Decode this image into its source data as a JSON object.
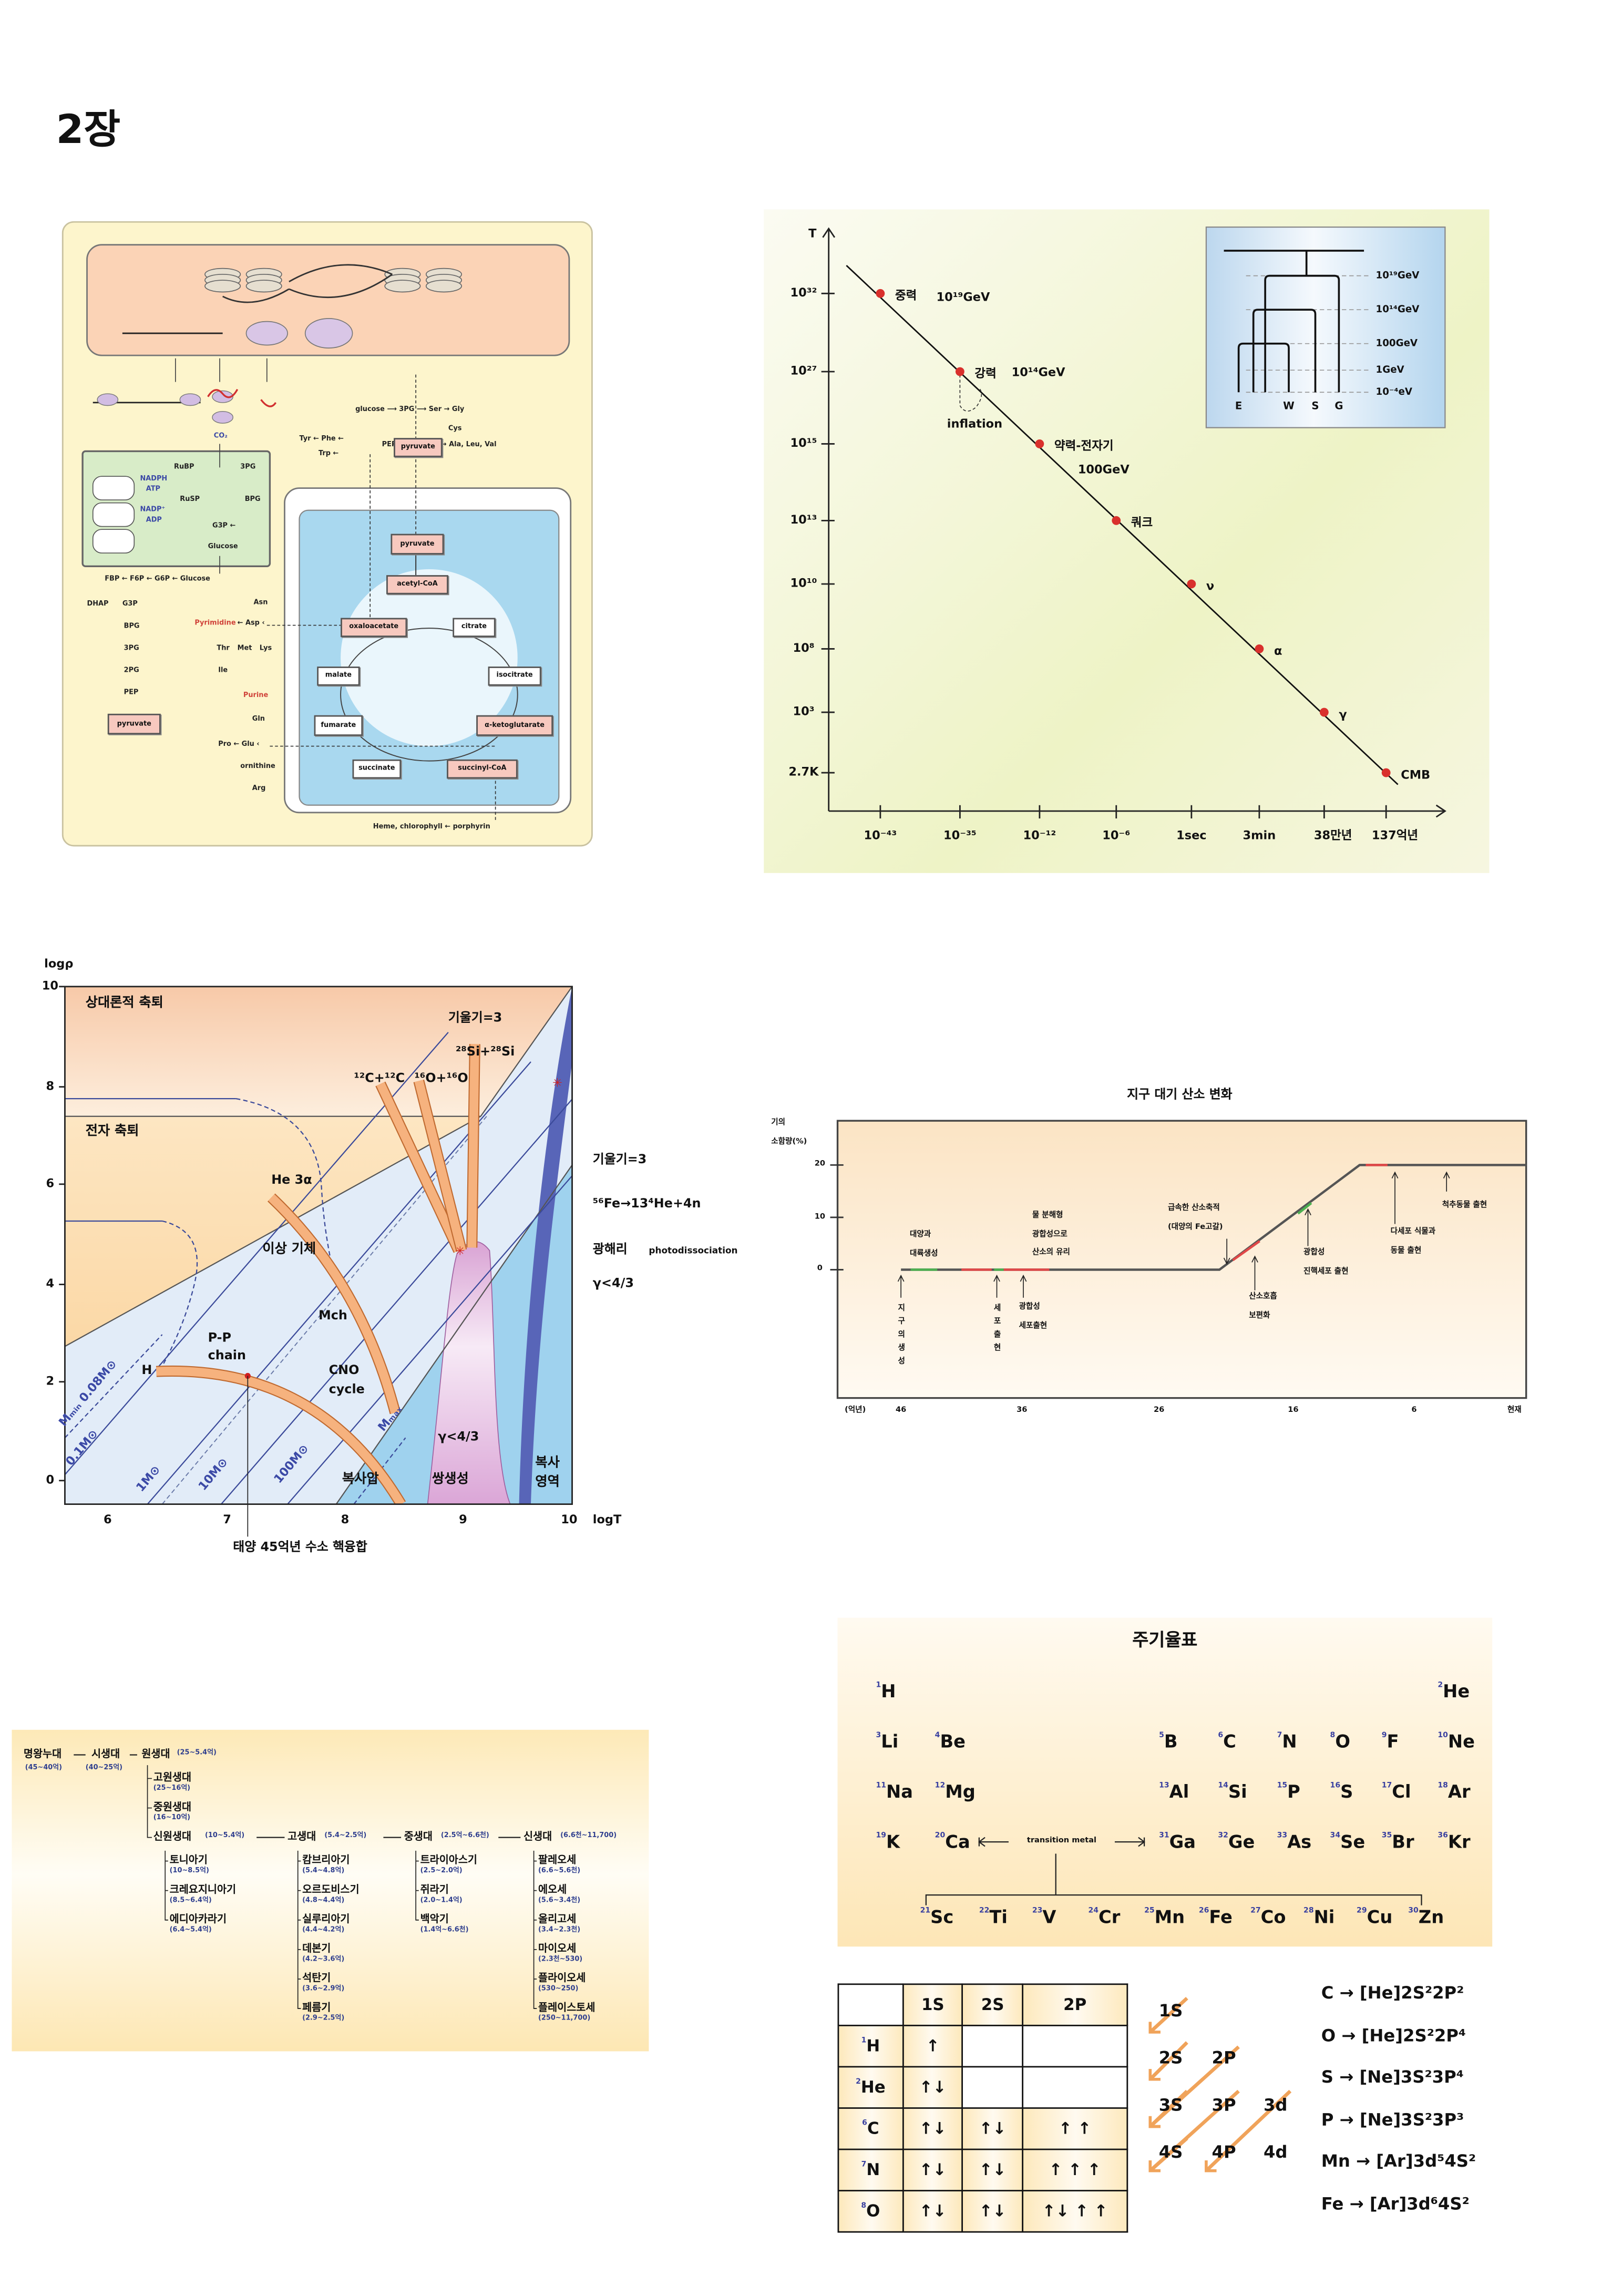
{
  "title": "2장",
  "metabolism": {
    "labels": [
      "glucose ⟶ 3PG ⟶ Ser → Gly",
      "Cys",
      "Tyr ← Phe ←",
      "Trp ←",
      "PEP ←",
      "→ Ala, Leu, Val",
      "CO₂",
      "RuBP",
      "3PG",
      "NADPH",
      "ATP",
      "RuSP",
      "BPG",
      "NADP⁺",
      "ADP",
      "G3P ←",
      "Glucose",
      "FBP ← F6P ← G6P ← Glucose",
      "DHAP",
      "G3P",
      "BPG",
      "3PG",
      "2PG",
      "PEP",
      "Asn",
      "Pyrimidine",
      "← Asp ‹",
      "Thr",
      "Met",
      "Lys",
      "Ile",
      "Purine",
      "Gln",
      "Pro ← Glu ‹",
      "ornithine",
      "Arg",
      "Heme, chlorophyll ← porphyrin"
    ],
    "boxes": [
      {
        "text": "pyruvate",
        "style": "pink"
      },
      {
        "text": "pyruvate",
        "style": "pink"
      },
      {
        "text": "pyruvate",
        "style": "pink"
      },
      {
        "text": "acetyl-CoA",
        "style": "pink"
      },
      {
        "text": "oxaloacetate",
        "style": "pink"
      },
      {
        "text": "citrate",
        "style": "white"
      },
      {
        "text": "malate",
        "style": "white"
      },
      {
        "text": "isocitrate",
        "style": "white"
      },
      {
        "text": "fumarate",
        "style": "white"
      },
      {
        "text": "α-ketoglutarate",
        "style": "pink"
      },
      {
        "text": "succinate",
        "style": "white"
      },
      {
        "text": "succinyl-CoA",
        "style": "pink"
      }
    ]
  },
  "cosmology": {
    "y_axis_label": "T",
    "y_ticks": [
      "10³²",
      "10²⁷",
      "10¹⁵",
      "10¹³",
      "10¹⁰",
      "10⁸",
      "10³",
      "2.7K"
    ],
    "x_ticks": [
      "10⁻⁴³",
      "10⁻³⁵",
      "10⁻¹²",
      "10⁻⁶",
      "1sec",
      "3min",
      "38만년",
      "137억년"
    ],
    "events": [
      {
        "name": "중력",
        "energy": "10¹⁹GeV"
      },
      {
        "name": "강력",
        "energy": "10¹⁴GeV"
      },
      {
        "name": "약력-전자기",
        "energy": "100GeV"
      },
      {
        "name": "쿼크",
        "energy": ""
      },
      {
        "name": "ν",
        "energy": ""
      },
      {
        "name": "α",
        "energy": ""
      },
      {
        "name": "γ",
        "energy": ""
      },
      {
        "name": "CMB",
        "energy": ""
      }
    ],
    "inflation_label": "inflation",
    "accent": "#d9302c",
    "inset": {
      "levels": [
        "10¹⁹GeV",
        "10¹⁴GeV",
        "100GeV",
        "1GeV",
        "10⁻⁴eV"
      ],
      "forces": [
        "E",
        "W",
        "S",
        "G"
      ]
    }
  },
  "stellar": {
    "y_axis_label": "logρ",
    "x_axis_label": "logT",
    "y_ticks": [
      "10",
      "8",
      "6",
      "4",
      "2",
      "0"
    ],
    "x_ticks": [
      "6",
      "7",
      "8",
      "9",
      "10"
    ],
    "regions": {
      "relativistic": "상대론적 축퇴",
      "electron": "전자 축퇴",
      "ideal": "이상 기체",
      "radiation_pressure": "복사압",
      "pair": "쌍생성",
      "radiation_1": "복사",
      "radiation_2": "영역"
    },
    "labels": {
      "slope_top": "기울기=3",
      "si": "²⁸Si+²⁸Si",
      "c": "¹²C+¹²C",
      "o": "¹⁶O+¹⁶O",
      "he": "He   3α",
      "mch": "Mch",
      "pp_1": "P-P",
      "pp_2": "chain",
      "cno_1": "CNO",
      "cno_2": "cycle",
      "h": "H",
      "mmin": "Mₘᵢₙ 0.08M⊙",
      "m01": "0.1M⊙",
      "m1": "1M⊙",
      "m10": "10M⊙",
      "m100": "100M⊙",
      "mmax": "Mₘₐₓ",
      "gamma_pair": "γ<4/3",
      "slope_right": "기울기=3",
      "fe": "⁵⁶Fe→13⁴He+4n",
      "photo": "광해리",
      "photo_en": "photodissociation",
      "gamma_right": "γ<4/3",
      "sun": "태양 45억년 수소 핵융합"
    }
  },
  "oxygen": {
    "title": "지구 대기 산소 변화",
    "y_label_1": "기의",
    "y_label_2": "소함량(%)",
    "y_ticks": [
      "20",
      "10",
      "0"
    ],
    "x_unit": "(억년)",
    "x_ticks": [
      "46",
      "36",
      "26",
      "16",
      "6",
      "현재"
    ],
    "line": [
      [
        46,
        0
      ],
      [
        21.5,
        0
      ],
      [
        10.5,
        20
      ],
      [
        0,
        20
      ]
    ],
    "annotations": [
      {
        "lines": [
          "대양과",
          "대륙생성"
        ]
      },
      {
        "lines": [
          "물 분해형",
          "광합성으로",
          "산소의 유리"
        ]
      },
      {
        "lines": [
          "급속한 산소축적",
          "(대양의 Fe고갈)"
        ]
      },
      {
        "lines": [
          "척추동물 출현"
        ]
      },
      {
        "lines": [
          "다세포 식물과",
          "동물 출현"
        ]
      },
      {
        "lines": [
          "광합성",
          "진핵세포 출현"
        ]
      },
      {
        "lines": [
          "산소호흡",
          "보편화"
        ]
      },
      {
        "lines": [
          "지",
          "구",
          "의",
          "생",
          "성"
        ]
      },
      {
        "lines": [
          "세",
          "포",
          "출",
          "현"
        ]
      },
      {
        "lines": [
          "광합성",
          "세포출현"
        ]
      }
    ]
  },
  "geology": {
    "eons": [
      {
        "name": "명왕누대",
        "range": "(45~40억)"
      },
      {
        "name": "시생대",
        "range": "(40~25억)"
      },
      {
        "name": "원생대",
        "range": "(25~5.4억)"
      }
    ],
    "proterozoic": [
      {
        "name": "고원생대",
        "range": "(25~16억)"
      },
      {
        "name": "중원생대",
        "range": "(16~10억)"
      },
      {
        "name": "신원생대",
        "range": "(10~5.4억)"
      }
    ],
    "eras": [
      {
        "name": "고생대",
        "range": "(5.4~2.5억)"
      },
      {
        "name": "중생대",
        "range": "(2.5억~6.6천)"
      },
      {
        "name": "신생대",
        "range": "(6.6천~11,700)"
      }
    ],
    "periods": [
      [
        {
          "name": "토니아기",
          "range": "(10~8.5억)"
        },
        {
          "name": "크레요지니아기",
          "range": "(8.5~6.4억)"
        },
        {
          "name": "에디아카라기",
          "range": "(6.4~5.4억)"
        }
      ],
      [
        {
          "name": "캄브리아기",
          "range": "(5.4~4.8억)"
        },
        {
          "name": "오르도비스기",
          "range": "(4.8~4.4억)"
        },
        {
          "name": "실루리아기",
          "range": "(4.4~4.2억)"
        },
        {
          "name": "데본기",
          "range": "(4.2~3.6억)"
        },
        {
          "name": "석탄기",
          "range": "(3.6~2.9억)"
        },
        {
          "name": "페름기",
          "range": "(2.9~2.5억)"
        }
      ],
      [
        {
          "name": "트라이아스기",
          "range": "(2.5~2.0억)"
        },
        {
          "name": "쥐라기",
          "range": "(2.0~1.4억)"
        },
        {
          "name": "백악기",
          "range": "(1.4억~6.6천)"
        }
      ],
      [
        {
          "name": "팔레오세",
          "range": "(6.6~5.6천)"
        },
        {
          "name": "에오세",
          "range": "(5.6~3.4천)"
        },
        {
          "name": "올리고세",
          "range": "(3.4~2.3천)"
        },
        {
          "name": "마이오세",
          "range": "(2.3천~530)"
        },
        {
          "name": "플라이오세",
          "range": "(530~250)"
        },
        {
          "name": "플레이스토세",
          "range": "(250~11,700)"
        }
      ]
    ]
  },
  "periodic_table": {
    "title": "주기율표",
    "transition_label": "transition metal",
    "main": [
      [
        {
          "n": "1",
          "s": "H",
          "group": 1
        },
        {
          "n": "2",
          "s": "He",
          "group": 8
        }
      ],
      [
        {
          "n": "3",
          "s": "Li",
          "group": 1
        },
        {
          "n": "4",
          "s": "Be",
          "group": 2
        },
        {
          "n": "5",
          "s": "B",
          "group": 3
        },
        {
          "n": "6",
          "s": "C",
          "group": 4
        },
        {
          "n": "7",
          "s": "N",
          "group": 5
        },
        {
          "n": "8",
          "s": "O",
          "group": 6
        },
        {
          "n": "9",
          "s": "F",
          "group": 7
        },
        {
          "n": "10",
          "s": "Ne",
          "group": 8
        }
      ],
      [
        {
          "n": "11",
          "s": "Na",
          "group": 1
        },
        {
          "n": "12",
          "s": "Mg",
          "group": 2
        },
        {
          "n": "13",
          "s": "Al",
          "group": 3
        },
        {
          "n": "14",
          "s": "Si",
          "group": 4
        },
        {
          "n": "15",
          "s": "P",
          "group": 5
        },
        {
          "n": "16",
          "s": "S",
          "group": 6
        },
        {
          "n": "17",
          "s": "Cl",
          "group": 7
        },
        {
          "n": "18",
          "s": "Ar",
          "group": 8
        }
      ],
      [
        {
          "n": "19",
          "s": "K",
          "group": 1
        },
        {
          "n": "20",
          "s": "Ca",
          "group": 2
        },
        {
          "n": "31",
          "s": "Ga",
          "group": 3
        },
        {
          "n": "32",
          "s": "Ge",
          "group": 4
        },
        {
          "n": "33",
          "s": "As",
          "group": 5
        },
        {
          "n": "34",
          "s": "Se",
          "group": 6
        },
        {
          "n": "35",
          "s": "Br",
          "group": 7
        },
        {
          "n": "36",
          "s": "Kr",
          "group": 8
        }
      ]
    ],
    "transition": [
      {
        "n": "21",
        "s": "Sc"
      },
      {
        "n": "22",
        "s": "Ti"
      },
      {
        "n": "23",
        "s": "V"
      },
      {
        "n": "24",
        "s": "Cr"
      },
      {
        "n": "25",
        "s": "Mn"
      },
      {
        "n": "26",
        "s": "Fe"
      },
      {
        "n": "27",
        "s": "Co"
      },
      {
        "n": "28",
        "s": "Ni"
      },
      {
        "n": "29",
        "s": "Cu"
      },
      {
        "n": "30",
        "s": "Zn"
      }
    ]
  },
  "orbitals": {
    "headers": [
      "",
      "1S",
      "2S",
      "2P"
    ],
    "rows": [
      {
        "n": "1",
        "s": "H",
        "cells": [
          "↑",
          "",
          ""
        ]
      },
      {
        "n": "2",
        "s": "He",
        "cells": [
          "↑↓",
          "",
          ""
        ]
      },
      {
        "n": "6",
        "s": "C",
        "cells": [
          "↑↓",
          "↑↓",
          "↑  ↑"
        ]
      },
      {
        "n": "7",
        "s": "N",
        "cells": [
          "↑↓",
          "↑↓",
          "↑  ↑  ↑"
        ]
      },
      {
        "n": "8",
        "s": "O",
        "cells": [
          "↑↓",
          "↑↓",
          "↑↓ ↑  ↑"
        ]
      }
    ],
    "aufbau": [
      "1S",
      "2S",
      "2P",
      "3S",
      "3P",
      "3d",
      "4S",
      "4P",
      "4d"
    ],
    "configs": [
      "C → [He]2S²2P²",
      "O → [He]2S²2P⁴",
      "S → [Ne]3S²3P⁴",
      "P → [Ne]3S²3P³",
      "Mn → [Ar]3d⁵4S²",
      "Fe → [Ar]3d⁶4S²"
    ],
    "arrow_color": "#f0a35a"
  }
}
